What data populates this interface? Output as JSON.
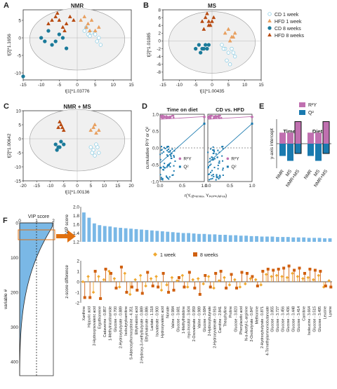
{
  "panels": {
    "A": {
      "letter": "A",
      "title": "NMR",
      "xlabel": "t[1]*1.03776",
      "ylabel": "t[2]*1.1656"
    },
    "B": {
      "letter": "B",
      "title": "MS",
      "xlabel": "t[1]*1.00435",
      "ylabel": "t[2]*1.01085"
    },
    "C": {
      "letter": "C",
      "title": "NMR + MS",
      "xlabel": "t[1]*1.00136",
      "ylabel": "t[2]*1.00642"
    },
    "D": {
      "letter": "D",
      "title_left": "Time on diet",
      "title_right": "CD vs. HFD",
      "ylabel": "cumulative R²Y or Q²",
      "xlabel": "r(Yₒᵦₛₑᵣᵥₑₔ, Yₚₑᵣₘᵤₗₐₜₑₔ)",
      "legend_r2y": "R²Y",
      "legend_q2": "Q²"
    },
    "E": {
      "letter": "E",
      "legend_r2y": "R²Y",
      "legend_q2": "Q²",
      "ylabel": "y-axis intercept",
      "group_time": "Time",
      "group_diet": "Diet",
      "xcats": [
        "NMR",
        "MS",
        "NMR+MS"
      ]
    },
    "F": {
      "letter": "F",
      "vip_label": "VIP score",
      "yaxis_vip": "VIP score",
      "yaxis_z": "z-score difference",
      "yaxis_var": "variable #",
      "legend_1w": "1 week",
      "legend_8w": "8 weeks"
    }
  },
  "legend": [
    "CD 1 week",
    "HFD 1 week",
    "CD 8 weeks",
    "HFD 8 weeks"
  ],
  "colors": {
    "cd1": "#7ec8e3",
    "hfd1": "#e8a060",
    "cd8": "#1a7a9a",
    "hfd8": "#b84a10",
    "r2y": "#c070b0",
    "q2": "#1a7aaf",
    "vipbar": "#7ab8e6",
    "w1": "#f0a830",
    "w8": "#d06010"
  },
  "chart_data": [
    {
      "type": "scatter",
      "panel": "A",
      "xlim": [
        -15,
        15
      ],
      "ylim": [
        -12,
        8
      ],
      "series": [
        {
          "name": "CD 1 week",
          "x": [
            2,
            3,
            4,
            5,
            6,
            3.5,
            5.5,
            6.5,
            2.5
          ],
          "y": [
            2,
            1,
            1.5,
            1,
            0,
            0.5,
            -1,
            -2,
            3
          ]
        },
        {
          "name": "HFD 1 week",
          "x": [
            1,
            2,
            3,
            4,
            2.5,
            5,
            6,
            3.5
          ],
          "y": [
            5,
            6,
            4,
            5,
            3,
            2,
            3,
            2
          ]
        },
        {
          "name": "CD 8 weeks",
          "x": [
            -10,
            -8,
            -6,
            -5,
            -4,
            -7,
            -3,
            -9,
            -15
          ],
          "y": [
            0,
            2,
            -1,
            1,
            0,
            -2,
            -3,
            -1,
            -11
          ]
        },
        {
          "name": "HFD 8 weeks",
          "x": [
            -8,
            -6,
            -5,
            -4,
            -3,
            -2,
            -7,
            -5.5,
            -3.5,
            -1
          ],
          "y": [
            4,
            6,
            5,
            3,
            4,
            6,
            5,
            7,
            2,
            5
          ]
        }
      ]
    },
    {
      "type": "scatter",
      "panel": "B",
      "xlim": [
        -15,
        15
      ],
      "ylim": [
        -10,
        8
      ],
      "series": [
        {
          "name": "CD 1 week",
          "x": [
            3,
            4,
            5,
            6,
            7,
            4.5,
            5.5,
            3.5,
            6.5
          ],
          "y": [
            -1,
            -2,
            -3,
            -2,
            -4,
            -5,
            -6,
            -2,
            -3
          ]
        },
        {
          "name": "HFD 1 week",
          "x": [
            4,
            5,
            6,
            7,
            5.5,
            6.5
          ],
          "y": [
            2,
            3,
            1,
            2,
            0,
            1
          ]
        },
        {
          "name": "CD 8 weeks",
          "x": [
            -4,
            -3,
            -2,
            -5,
            -1,
            -3.5,
            -2.5,
            -1.5
          ],
          "y": [
            -1,
            -2,
            -1,
            -2,
            -1,
            -3,
            -2,
            -2
          ]
        },
        {
          "name": "HFD 8 weeks",
          "x": [
            -3,
            -2,
            -1,
            0,
            -2.5,
            -1.5,
            -0.5,
            0.5,
            -1
          ],
          "y": [
            5,
            6,
            4,
            5,
            3,
            7,
            4,
            6,
            5
          ]
        }
      ]
    },
    {
      "type": "scatter",
      "panel": "C",
      "xlim": [
        -20,
        20
      ],
      "ylim": [
        -15,
        10
      ],
      "series": [
        {
          "name": "CD 1 week",
          "x": [
            5,
            6,
            7,
            8,
            6.5,
            5.5,
            7.5
          ],
          "y": [
            -3,
            -4,
            -2,
            -5,
            -6,
            -5,
            -3
          ]
        },
        {
          "name": "HFD 1 week",
          "x": [
            5,
            6,
            7,
            8,
            6.5
          ],
          "y": [
            3,
            4,
            2,
            3,
            5
          ]
        },
        {
          "name": "CD 8 weeks",
          "x": [
            -8,
            -7,
            -6,
            -5,
            -7.5,
            -6.5
          ],
          "y": [
            -2,
            -3,
            -1,
            -2,
            -4,
            -3
          ]
        },
        {
          "name": "HFD 8 weeks",
          "x": [
            -7,
            -6,
            -5,
            -6.5,
            -5.5
          ],
          "y": [
            4,
            5,
            3,
            6,
            4
          ]
        }
      ]
    },
    {
      "type": "bar",
      "panel": "E",
      "groups": [
        "Time",
        "Diet"
      ],
      "categories": [
        "NMR",
        "MS",
        "NMR+MS"
      ],
      "series": [
        {
          "name": "R²Y",
          "values": [
            [
              0.45,
              0.45,
              0.9
            ],
            [
              0.45,
              0.45,
              0.9
            ]
          ]
        },
        {
          "name": "Q²",
          "values": [
            [
              -0.5,
              -0.7,
              -0.4
            ],
            [
              -0.5,
              -0.7,
              -0.4
            ]
          ]
        }
      ],
      "ylim": [
        -1.0,
        1.0
      ]
    },
    {
      "type": "bar",
      "panel": "F-vip",
      "ylim": [
        1.2,
        2.0
      ],
      "values": [
        1.87,
        1.75,
        1.62,
        1.58,
        1.56,
        1.55,
        1.53,
        1.52,
        1.51,
        1.5,
        1.49,
        1.48,
        1.47,
        1.46,
        1.45,
        1.44,
        1.43,
        1.42,
        1.41,
        1.4,
        1.4,
        1.39,
        1.38,
        1.38,
        1.37,
        1.37,
        1.36,
        1.36,
        1.35,
        1.35,
        1.34,
        1.34,
        1.33,
        1.33,
        1.32,
        1.32,
        1.32,
        1.31,
        1.31,
        1.31,
        1.3,
        1.3,
        1.3,
        1.29,
        1.29,
        1.29,
        1.28,
        1.28
      ]
    },
    {
      "type": "line",
      "panel": "F-z",
      "ylim": [
        -2,
        2
      ],
      "categories": [
        "Xanthine",
        "Hippuric acid",
        "2-Hydroxyisovaleric acid",
        "Ergothioneine",
        "Cadaverine - 0.857",
        "1-Methylnicotinamide",
        "Glucose - 0.700",
        "2-Hydroxybutyrate - 0.889",
        "Isobutyrylcarnitine",
        "S-Adenosylhomocysteine - 4.351",
        "Ethylmalonic acid",
        "2-Hydroxy-3-methylbutyrate - 0.889",
        "Ethylmalonate - 0.886",
        "Lactate - 1.318",
        "Isovalerate - 0.900",
        "Hydroxyvaleric acid",
        "Nonate",
        "Valine - 0.984",
        "Glucose - 3.681",
        "1-Methylhistidine",
        "myo-Inositol - 3.604",
        "2-Oxovalerate - 0.959",
        "Valine - 0.989",
        "Glucose - 3.684",
        "2-Hydroxybutyrate",
        "2-Hydroxyvalerate - 0.916",
        "Carnitine - 2.841",
        "Theophylline",
        "Proline",
        "Glucose - 3.823",
        "Phenylacetic acid",
        "N-α-Acetyl-L-arginine",
        "2-Oxobutyrate - 0.847",
        "Methionine",
        "2-Hydroxybutyrate - 0.871",
        "4-Trimethylammoniobutanoate",
        "Glucose - 3.855",
        "Glucose - 3.727",
        "Glucose - 3.456",
        "Glucose - 3.436",
        "Glucose - 3.448",
        "Glucose - 3.414",
        "Carnitine",
        "Isoleucine - 3.664",
        "Glucose - 3.515",
        "Glucose - 3.495",
        "Leucine",
        "Lysine"
      ],
      "series": [
        {
          "name": "1 week",
          "values": [
            0.0,
            0.5,
            -1.0,
            0.5,
            0.2,
            1.0,
            0.3,
            -0.5,
            0.8,
            -1.2,
            0.2,
            0.6,
            -0.4,
            0.3,
            0.5,
            -0.8,
            -0.3,
            0.4,
            0.1,
            0.6,
            -0.5,
            0.2,
            0.3,
            -0.2,
            0.5,
            -0.6,
            0.1,
            0.4,
            -0.3,
            0.2,
            -0.5,
            -0.2,
            0.3,
            0.2,
            -0.3,
            0.7,
            0.5,
            0.6,
            0.5,
            0.4,
            0.8,
            0.5,
            0.3,
            0.4,
            0.2,
            0.6,
            -0.5,
            0.1
          ]
        },
        {
          "name": "8 weeks",
          "values": [
            -1.5,
            -1.5,
            1.0,
            -1.6,
            1.2,
            0.8,
            -0.6,
            1.4,
            -1.0,
            -0.5,
            -0.8,
            -1.1,
            0.9,
            -0.4,
            -0.5,
            0.8,
            -1.0,
            -0.8,
            0.4,
            -0.5,
            0.9,
            -0.6,
            -1.2,
            0.6,
            -0.5,
            0.8,
            1.0,
            -0.6,
            0.7,
            -0.6,
            0.9,
            0.8,
            0.5,
            -0.4,
            1.0,
            1.2,
            1.1,
            1.2,
            1.3,
            1.5,
            1.1,
            1.3,
            0.8,
            1.2,
            1.1,
            1.0,
            -0.4,
            -0.5
          ]
        }
      ]
    }
  ]
}
